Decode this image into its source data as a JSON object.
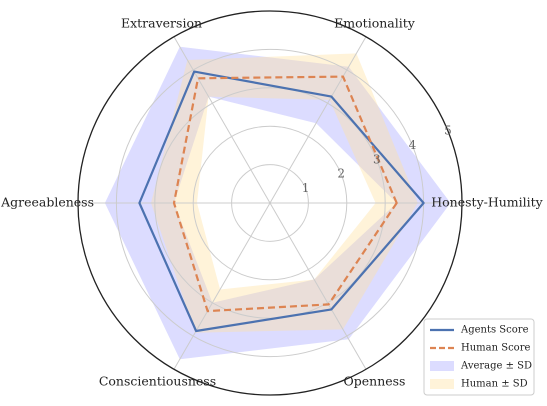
{
  "chart_data": {
    "type": "radar",
    "axes": [
      "Honesty-Humility",
      "Emotionality",
      "Extraversion",
      "Agreeableness",
      "Conscientiousness",
      "Openness"
    ],
    "rlim": [
      0,
      5
    ],
    "r_ticks": [
      "1",
      "2",
      "3",
      "4",
      "5"
    ],
    "grid": true,
    "legend_position": "bottom-right",
    "series": [
      {
        "name": "Agents Score",
        "values": [
          4.0,
          3.2,
          3.95,
          3.4,
          3.85,
          3.2
        ],
        "color": "#4c72b0",
        "line_style": "solid"
      },
      {
        "name": "Human Score",
        "values": [
          3.3,
          3.8,
          3.75,
          2.5,
          3.25,
          3.05
        ],
        "color": "#dd8452",
        "line_style": "dashed"
      }
    ],
    "bands": [
      {
        "name": "Average ± SD",
        "upper": [
          4.7,
          4.1,
          4.7,
          4.3,
          4.7,
          4.1
        ],
        "lower": [
          3.3,
          2.4,
          3.2,
          2.5,
          3.0,
          2.3
        ],
        "color": "#8080ff"
      },
      {
        "name": "Human ± SD",
        "upper": [
          3.85,
          4.5,
          4.3,
          3.1,
          3.9,
          3.8
        ],
        "lower": [
          2.75,
          3.1,
          3.2,
          1.9,
          2.6,
          2.3
        ],
        "color": "#ffe0a0"
      }
    ]
  }
}
